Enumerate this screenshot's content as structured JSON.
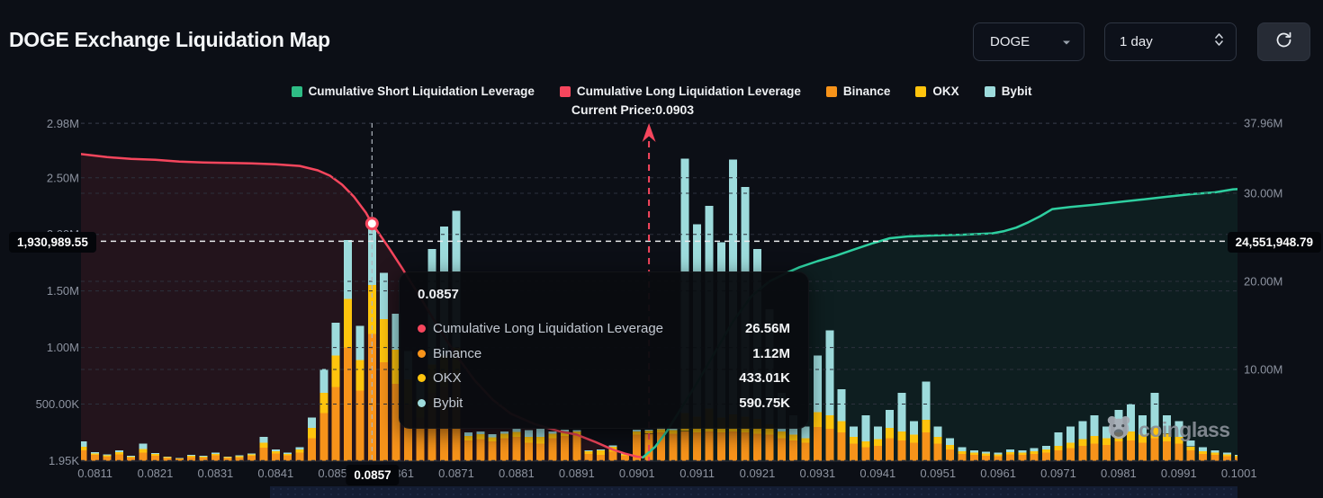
{
  "header": {
    "title": "DOGE Exchange Liquidation Map",
    "coin": {
      "value": "DOGE"
    },
    "interval": {
      "value": "1 day"
    }
  },
  "legend": {
    "items": [
      {
        "label": "Cumulative Short Liquidation Leverage",
        "color": "#2ebd85"
      },
      {
        "label": "Cumulative Long Liquidation Leverage",
        "color": "#f6465d"
      },
      {
        "label": "Binance",
        "color": "#f7931a"
      },
      {
        "label": "OKX",
        "color": "#ffc40d"
      },
      {
        "label": "Bybit",
        "color": "#9ddbdc"
      }
    ]
  },
  "annotations": {
    "current_price_text": "Current Price:0.0903",
    "current_price": 0.0903
  },
  "crosshair": {
    "x_label": "0.0857",
    "left_value_label": "1,930,989.55",
    "right_value_label": "24,551,948.79"
  },
  "tooltip": {
    "title": "0.0857",
    "rows": [
      {
        "label": "Cumulative Long Liquidation Leverage",
        "value": "26.56M",
        "color": "#f6465d"
      },
      {
        "label": "Binance",
        "value": "1.12M",
        "color": "#f7931a"
      },
      {
        "label": "OKX",
        "value": "433.01K",
        "color": "#ffc40d"
      },
      {
        "label": "Bybit",
        "value": "590.75K",
        "color": "#9ddbdc"
      }
    ]
  },
  "watermark": {
    "text": "coinglass"
  },
  "chart_data": {
    "type": "mixed",
    "x_ticks": [
      "0.0811",
      "0.0821",
      "0.0831",
      "0.0841",
      "0.0851",
      "0.0861",
      "0.0871",
      "0.0881",
      "0.0891",
      "0.0901",
      "0.0911",
      "0.0921",
      "0.0931",
      "0.0941",
      "0.0951",
      "0.0961",
      "0.0971",
      "0.0981",
      "0.0991",
      "0.1001"
    ],
    "left_axis_ticks": [
      {
        "label": "2.98M",
        "v": 2980000
      },
      {
        "label": "2.50M",
        "v": 2500000
      },
      {
        "label": "2.00M",
        "v": 2000000
      },
      {
        "label": "1.50M",
        "v": 1500000
      },
      {
        "label": "1.00M",
        "v": 1000000
      },
      {
        "label": "500.00K",
        "v": 500000
      },
      {
        "label": "1.95K",
        "v": 1950
      }
    ],
    "right_axis_ticks": [
      {
        "label": "37.96M",
        "v": 37.96
      },
      {
        "label": "30.00M",
        "v": 30
      },
      {
        "label": "20.00M",
        "v": 20
      },
      {
        "label": "10.00M",
        "v": 10
      }
    ],
    "current_price": 0.0903,
    "crosshair_price": 0.0857,
    "crosshair_left_value": 1930989.55,
    "crosshair_right_value_m": 24.551948,
    "marker": {
      "price": 0.0857,
      "value_m": 26.56
    },
    "series": [
      {
        "name": "Cumulative Long Liquidation Leverage",
        "type": "area-line",
        "axis": "right",
        "color": "#f6465d",
        "fill": "rgba(246,70,93,0.10)",
        "points": [
          [
            0.0808,
            34.5
          ],
          [
            0.0813,
            34.1
          ],
          [
            0.0817,
            33.9
          ],
          [
            0.0821,
            33.8
          ],
          [
            0.0825,
            33.6
          ],
          [
            0.0829,
            33.5
          ],
          [
            0.0833,
            33.45
          ],
          [
            0.0837,
            33.4
          ],
          [
            0.0841,
            33.3
          ],
          [
            0.0845,
            33.1
          ],
          [
            0.0848,
            32.6
          ],
          [
            0.085,
            32.0
          ],
          [
            0.0852,
            31.0
          ],
          [
            0.0854,
            29.6
          ],
          [
            0.0856,
            27.8
          ],
          [
            0.0857,
            26.56
          ],
          [
            0.0858,
            25.6
          ],
          [
            0.086,
            23.6
          ],
          [
            0.0862,
            21.5
          ],
          [
            0.0865,
            18.2
          ],
          [
            0.0868,
            14.8
          ],
          [
            0.0871,
            11.6
          ],
          [
            0.0874,
            8.8
          ],
          [
            0.0877,
            6.6
          ],
          [
            0.088,
            5.0
          ],
          [
            0.0884,
            3.8
          ],
          [
            0.0888,
            3.0
          ],
          [
            0.0891,
            2.6
          ],
          [
            0.0894,
            1.8
          ],
          [
            0.0897,
            0.9
          ],
          [
            0.0899,
            0.45
          ],
          [
            0.0901,
            0.1
          ],
          [
            0.0902,
            0.02
          ]
        ]
      },
      {
        "name": "Cumulative Short Liquidation Leverage",
        "type": "area-line",
        "axis": "right",
        "color": "#2ecfa0",
        "fill": "rgba(46,189,133,0.09)",
        "points": [
          [
            0.0902,
            0.02
          ],
          [
            0.0904,
            1.2
          ],
          [
            0.0906,
            3.0
          ],
          [
            0.0908,
            5.2
          ],
          [
            0.0911,
            8.5
          ],
          [
            0.0914,
            12.0
          ],
          [
            0.0917,
            15.5
          ],
          [
            0.092,
            18.3
          ],
          [
            0.0923,
            20.0
          ],
          [
            0.0926,
            21.0
          ],
          [
            0.0928,
            21.6
          ],
          [
            0.0931,
            22.3
          ],
          [
            0.0934,
            22.9
          ],
          [
            0.0937,
            23.6
          ],
          [
            0.094,
            24.3
          ],
          [
            0.0943,
            24.9
          ],
          [
            0.0946,
            25.1
          ],
          [
            0.095,
            25.2
          ],
          [
            0.0955,
            25.3
          ],
          [
            0.096,
            25.45
          ],
          [
            0.0962,
            25.7
          ],
          [
            0.0964,
            26.1
          ],
          [
            0.0966,
            26.7
          ],
          [
            0.0968,
            27.4
          ],
          [
            0.097,
            28.2
          ],
          [
            0.0973,
            28.45
          ],
          [
            0.0977,
            28.7
          ],
          [
            0.0981,
            29.0
          ],
          [
            0.0985,
            29.3
          ],
          [
            0.0989,
            29.6
          ],
          [
            0.0993,
            29.9
          ],
          [
            0.0997,
            30.1
          ],
          [
            0.1,
            30.45
          ],
          [
            0.1003,
            30.55
          ],
          [
            0.1006,
            30.6
          ]
        ]
      }
    ],
    "bars": {
      "stack_order": [
        "Binance",
        "OKX",
        "Bybit"
      ],
      "colors": {
        "Binance": "#f7931a",
        "OKX": "#ffc40d",
        "Bybit": "#9ddbdc"
      },
      "unit": "K",
      "data": [
        [
          0.0809,
          90,
          35,
          45
        ],
        [
          0.0811,
          50,
          15,
          12
        ],
        [
          0.0813,
          38,
          10,
          8
        ],
        [
          0.0815,
          55,
          20,
          16
        ],
        [
          0.0817,
          28,
          8,
          6
        ],
        [
          0.0819,
          72,
          30,
          48
        ],
        [
          0.0821,
          45,
          14,
          10
        ],
        [
          0.0823,
          24,
          8,
          5
        ],
        [
          0.0825,
          16,
          5,
          4
        ],
        [
          0.0827,
          34,
          10,
          8
        ],
        [
          0.0829,
          28,
          8,
          6
        ],
        [
          0.0831,
          46,
          15,
          11
        ],
        [
          0.0833,
          24,
          6,
          5
        ],
        [
          0.0835,
          30,
          10,
          8
        ],
        [
          0.0837,
          42,
          12,
          10
        ],
        [
          0.0839,
          115,
          45,
          50
        ],
        [
          0.0841,
          62,
          20,
          16
        ],
        [
          0.0843,
          46,
          15,
          12
        ],
        [
          0.0845,
          72,
          26,
          20
        ],
        [
          0.0847,
          200,
          90,
          92
        ],
        [
          0.0849,
          420,
          180,
          210
        ],
        [
          0.0851,
          650,
          280,
          290
        ],
        [
          0.0853,
          1000,
          430,
          520
        ],
        [
          0.0855,
          620,
          270,
          300
        ],
        [
          0.0857,
          1120,
          433,
          591
        ],
        [
          0.0859,
          870,
          380,
          410
        ],
        [
          0.0861,
          680,
          300,
          320
        ],
        [
          0.0863,
          500,
          220,
          250
        ],
        [
          0.0865,
          380,
          160,
          180
        ],
        [
          0.0867,
          600,
          250,
          1020
        ],
        [
          0.0869,
          650,
          280,
          1140
        ],
        [
          0.0871,
          700,
          300,
          1210
        ],
        [
          0.0873,
          180,
          40,
          30
        ],
        [
          0.0875,
          190,
          45,
          25
        ],
        [
          0.0877,
          170,
          35,
          30
        ],
        [
          0.0879,
          200,
          40,
          20
        ],
        [
          0.0881,
          210,
          45,
          25
        ],
        [
          0.0883,
          160,
          50,
          60
        ],
        [
          0.0885,
          150,
          60,
          70
        ],
        [
          0.0887,
          200,
          40,
          20
        ],
        [
          0.0889,
          220,
          40,
          15
        ],
        [
          0.0891,
          230,
          30,
          10
        ],
        [
          0.0893,
          60,
          25,
          6
        ],
        [
          0.0895,
          52,
          40,
          6
        ],
        [
          0.0897,
          80,
          45,
          10
        ],
        [
          0.0899,
          42,
          15,
          5
        ],
        [
          0.0901,
          230,
          30,
          15
        ],
        [
          0.0903,
          240,
          25,
          10
        ],
        [
          0.0905,
          250,
          30,
          15
        ],
        [
          0.0907,
          240,
          30,
          12
        ],
        [
          0.0909,
          260,
          160,
          2250
        ],
        [
          0.0911,
          250,
          140,
          1700
        ],
        [
          0.0913,
          260,
          200,
          1790
        ],
        [
          0.0915,
          250,
          130,
          1550
        ],
        [
          0.0917,
          260,
          150,
          2250
        ],
        [
          0.0919,
          250,
          140,
          2030
        ],
        [
          0.0921,
          240,
          130,
          1500
        ],
        [
          0.0923,
          230,
          90,
          1020
        ],
        [
          0.0925,
          200,
          60,
          340
        ],
        [
          0.0927,
          180,
          50,
          170
        ],
        [
          0.0929,
          160,
          40,
          100
        ],
        [
          0.0931,
          300,
          130,
          500
        ],
        [
          0.0933,
          280,
          120,
          750
        ],
        [
          0.0935,
          250,
          100,
          280
        ],
        [
          0.0937,
          150,
          60,
          90
        ],
        [
          0.0939,
          120,
          50,
          230
        ],
        [
          0.0941,
          130,
          60,
          110
        ],
        [
          0.0943,
          200,
          90,
          160
        ],
        [
          0.0945,
          180,
          80,
          340
        ],
        [
          0.0947,
          160,
          70,
          120
        ],
        [
          0.0949,
          250,
          110,
          340
        ],
        [
          0.0951,
          150,
          60,
          90
        ],
        [
          0.0953,
          100,
          40,
          60
        ],
        [
          0.0955,
          60,
          25,
          35
        ],
        [
          0.0957,
          50,
          20,
          20
        ],
        [
          0.0959,
          45,
          18,
          17
        ],
        [
          0.0961,
          40,
          15,
          15
        ],
        [
          0.0963,
          55,
          20,
          25
        ],
        [
          0.0965,
          50,
          20,
          20
        ],
        [
          0.0967,
          60,
          25,
          25
        ],
        [
          0.0969,
          70,
          30,
          30
        ],
        [
          0.0971,
          90,
          40,
          120
        ],
        [
          0.0973,
          110,
          50,
          140
        ],
        [
          0.0975,
          130,
          60,
          160
        ],
        [
          0.0977,
          150,
          70,
          180
        ],
        [
          0.0979,
          140,
          60,
          100
        ],
        [
          0.0981,
          170,
          80,
          200
        ],
        [
          0.0983,
          180,
          80,
          240
        ],
        [
          0.0985,
          160,
          70,
          170
        ],
        [
          0.0987,
          200,
          90,
          310
        ],
        [
          0.0989,
          170,
          70,
          160
        ],
        [
          0.0991,
          150,
          60,
          140
        ],
        [
          0.0993,
          90,
          35,
          55
        ],
        [
          0.0995,
          60,
          25,
          35
        ],
        [
          0.0997,
          50,
          20,
          20
        ],
        [
          0.0999,
          40,
          15,
          15
        ],
        [
          0.1001,
          30,
          12,
          8
        ],
        [
          0.1003,
          20,
          8,
          7
        ]
      ]
    }
  }
}
